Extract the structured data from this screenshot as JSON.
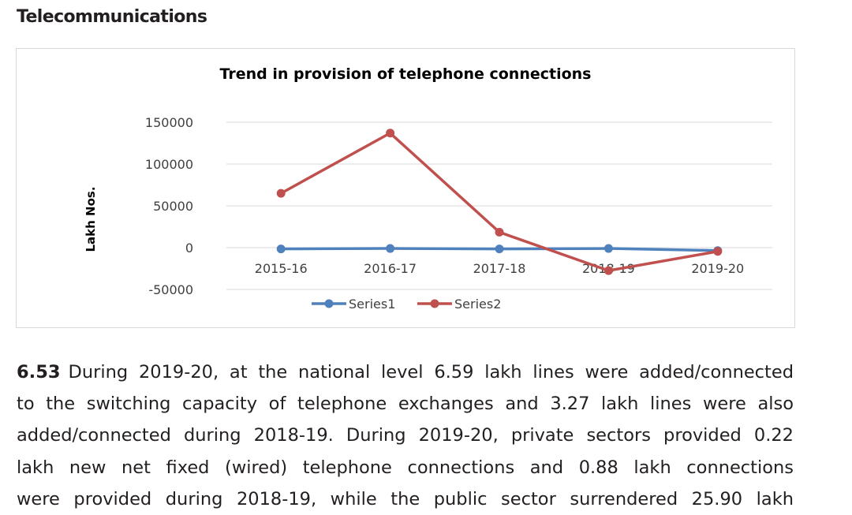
{
  "section": {
    "heading": "Telecommunications"
  },
  "chart_data": {
    "type": "line",
    "title": "Trend in provision of telephone connections",
    "xlabel": "",
    "ylabel": "Lakh Nos.",
    "categories": [
      "2015-16",
      "2016-17",
      "2017-18",
      "2018-19",
      "2019-20"
    ],
    "ylim": [
      -50000,
      150000
    ],
    "yticks": [
      150000,
      100000,
      50000,
      0,
      -50000
    ],
    "grid": true,
    "legend": "bottom",
    "series": [
      {
        "name": "Series1",
        "color": "#4f81bd",
        "values": [
          -1500,
          -1000,
          -1500,
          -1000,
          -3500
        ]
      },
      {
        "name": "Series2",
        "color": "#c0504d",
        "values": [
          65000,
          137000,
          18500,
          -27500,
          -4500
        ]
      }
    ]
  },
  "paragraph": {
    "number": "6.53",
    "lines": [
      "During 2019-20, at the national level 6.59 lakh lines were added/connected",
      "to the switching capacity of telephone exchanges and 3.27 lakh lines were also",
      "added/connected during 2018-19. During 2019-20, private sectors provided 0.22",
      "lakh new net fixed (wired) telephone connections and 0.88 lakh connections",
      "were provided during 2018-19, while the public sector surrendered 25.90 lakh"
    ]
  }
}
